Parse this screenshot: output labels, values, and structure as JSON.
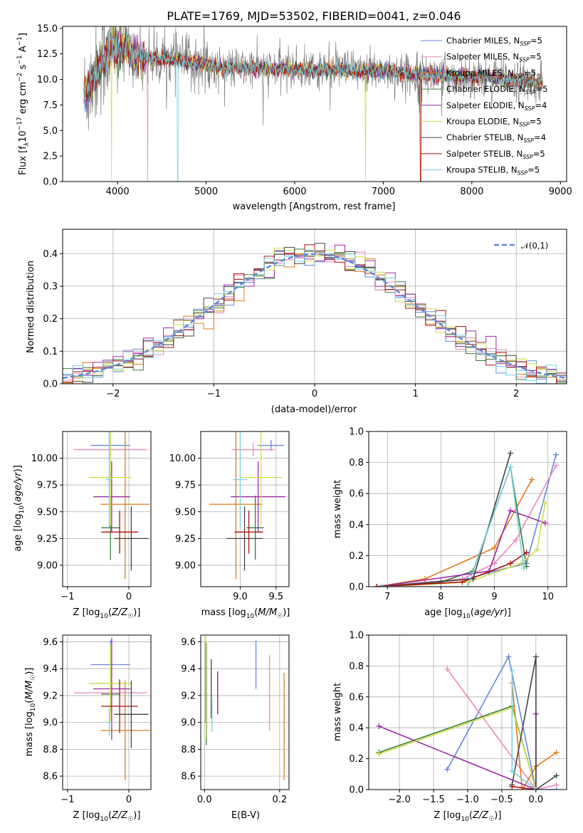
{
  "colors": [
    "#6688dd",
    "#e888bb",
    "#e07a1f",
    "#3a7d3a",
    "#9c2aa8",
    "#ccdd44",
    "#444444",
    "#aa1111",
    "#77d0e0"
  ],
  "chart_data": [
    {
      "id": "spectrum",
      "type": "line",
      "title": "PLATE=1769, MJD=53502, FIBERID=0041, z=0.046",
      "xlabel": "wavelength [Angstrom, rest frame]",
      "ylabel": "Flux [f_λ10^-17 erg cm^-2 s^-1 A^-1]",
      "xlim": [
        3380,
        9070
      ],
      "ylim": [
        0,
        15.2
      ],
      "xticks": [
        4000,
        5000,
        6000,
        7000,
        8000,
        9000
      ],
      "yticks": [
        0.0,
        2.5,
        5.0,
        7.5,
        10.0,
        12.5,
        15.0
      ],
      "data_range": [
        3620,
        8800
      ],
      "continuum": {
        "x": [
          3620,
          3700,
          3800,
          3900,
          4000,
          4100,
          4200,
          4300,
          4500,
          4700,
          5000,
          5200,
          5500,
          5800,
          6000,
          6200,
          6500,
          6700,
          7000,
          7300,
          7600,
          8000,
          8400,
          8800
        ],
        "y": [
          8.4,
          9.6,
          11.5,
          12.6,
          13.2,
          13.0,
          12.4,
          12.1,
          12.0,
          11.8,
          11.4,
          11.1,
          11.1,
          11.0,
          11.0,
          10.9,
          11.0,
          10.8,
          10.9,
          10.5,
          10.4,
          10.3,
          10.0,
          9.7
        ]
      },
      "dips": [
        {
          "x": 3933,
          "series": [
            5
          ]
        },
        {
          "x": 4340,
          "series": [
            1
          ]
        },
        {
          "x": 4680,
          "series": [
            8
          ]
        },
        {
          "x": 6800,
          "series": [
            5
          ]
        },
        {
          "x": 7420,
          "series": [
            2,
            7
          ]
        }
      ],
      "legend": {
        "placement": "upper right",
        "labels": [
          "Chabrier MILES",
          "Salpeter MILES",
          "Kroupa MILES",
          "Chabrier ELODIE",
          "Salpeter ELODIE",
          "Kroupa ELODIE",
          "Chabrier STELIB",
          "Salpeter STELIB",
          "Kroupa STELIB"
        ],
        "nssp": [
          "N_SSP=5",
          "N_SSP=5",
          "N_SSP=5",
          "N_SSP=5",
          "N_SSP=4",
          "N_SSP=5",
          "N_SSP=4",
          "N_SSP=5",
          "N_SSP=5"
        ]
      }
    },
    {
      "id": "residuals",
      "type": "line",
      "xlabel": "(data-model)/error",
      "ylabel": "Normed distribution",
      "xlim": [
        -2.5,
        2.5
      ],
      "ylim": [
        0,
        0.475
      ],
      "xticks": [
        -2,
        -1,
        0,
        1,
        2
      ],
      "yticks": [
        0.0,
        0.1,
        0.2,
        0.3,
        0.4
      ],
      "bin_width": 0.1,
      "reference": {
        "label": "𝒩(0,1)",
        "mean": 0,
        "sigma": 1
      },
      "legend_placement": "upper right"
    },
    {
      "id": "age-vs-Z",
      "type": "scatter",
      "xlabel": "Z [log10(Z/Z☉)]",
      "ylabel": "age  [log10(age/yr)]",
      "xlim": [
        -1.08,
        0.36
      ],
      "ylim": [
        8.8,
        10.25
      ],
      "xticks": [
        -1,
        0
      ],
      "yticks": [
        9.0,
        9.25,
        9.5,
        9.75,
        10.0
      ],
      "points": [
        {
          "x": -0.3,
          "xerr": 0.32,
          "y": 10.12,
          "yerr": 0.05
        },
        {
          "x": -0.3,
          "xerr": 0.6,
          "y": 10.08,
          "yerr": 0.06
        },
        {
          "x": -0.06,
          "xerr": 0.4,
          "y": 9.57,
          "yerr": 0.7
        },
        {
          "x": -0.3,
          "xerr": 0.15,
          "y": 9.35,
          "yerr": 0.3
        },
        {
          "x": -0.28,
          "xerr": 0.3,
          "y": 9.64,
          "yerr": 0.33
        },
        {
          "x": -0.3,
          "xerr": 0.35,
          "y": 9.82,
          "yerr": 0.45
        },
        {
          "x": 0.04,
          "xerr": 0.28,
          "y": 9.25,
          "yerr": 0.3
        },
        {
          "x": -0.15,
          "xerr": 0.3,
          "y": 9.31,
          "yerr": 0.2
        },
        {
          "x": -0.32,
          "xerr": 0.05,
          "y": 9.8,
          "yerr": 0.45
        }
      ]
    },
    {
      "id": "age-vs-mass",
      "type": "scatter",
      "xlabel": "mass [log10(M/M☉)]",
      "ylabel": "",
      "xlim": [
        8.45,
        9.68
      ],
      "ylim": [
        8.8,
        10.25
      ],
      "xticks": [
        9.0,
        9.5
      ],
      "yticks": [
        9.0,
        9.25,
        9.5,
        9.75,
        10.0
      ],
      "points": [
        {
          "x": 9.43,
          "xerr": 0.18,
          "y": 10.12,
          "yerr": 0.05
        },
        {
          "x": 9.18,
          "xerr": 0.3,
          "y": 10.08,
          "yerr": 0.06
        },
        {
          "x": 8.94,
          "xerr": 0.37,
          "y": 9.57,
          "yerr": 0.7
        },
        {
          "x": 9.21,
          "xerr": 0.12,
          "y": 9.35,
          "yerr": 0.3
        },
        {
          "x": 9.25,
          "xerr": 0.38,
          "y": 9.64,
          "yerr": 0.33
        },
        {
          "x": 9.29,
          "xerr": 0.29,
          "y": 9.82,
          "yerr": 0.45
        },
        {
          "x": 9.06,
          "xerr": 0.25,
          "y": 9.25,
          "yerr": 0.3
        },
        {
          "x": 9.12,
          "xerr": 0.2,
          "y": 9.31,
          "yerr": 0.2
        },
        {
          "x": 9.0,
          "xerr": 0.1,
          "y": 9.8,
          "yerr": 0.45
        }
      ]
    },
    {
      "id": "weight-vs-age",
      "type": "line",
      "xlabel": "age  [log10(age/yr)]",
      "ylabel": "mass weight",
      "xlim": [
        6.65,
        10.35
      ],
      "ylim": [
        0,
        1.0
      ],
      "xticks": [
        7,
        8,
        9,
        10
      ],
      "yticks": [
        0.0,
        0.2,
        0.4,
        0.6,
        0.8,
        1.0
      ],
      "series": [
        {
          "x": [
            6.8,
            8.5,
            9.0,
            9.6,
            10.15
          ],
          "y": [
            0.0,
            0.05,
            0.1,
            0.15,
            0.85
          ]
        },
        {
          "x": [
            6.8,
            8.4,
            9.0,
            9.4,
            10.15
          ],
          "y": [
            0.0,
            0.05,
            0.15,
            0.3,
            0.78
          ]
        },
        {
          "x": [
            6.8,
            7.7,
            9.0,
            9.7
          ],
          "y": [
            0.0,
            0.05,
            0.25,
            0.69
          ]
        },
        {
          "x": [
            6.9,
            8.0,
            8.6,
            9.3,
            9.6
          ],
          "y": [
            0.0,
            0.03,
            0.1,
            0.77,
            0.13
          ]
        },
        {
          "x": [
            6.8,
            8.9,
            9.3,
            9.95
          ],
          "y": [
            0.0,
            0.1,
            0.49,
            0.41
          ]
        },
        {
          "x": [
            7.0,
            8.5,
            9.5,
            9.8,
            9.95
          ],
          "y": [
            0.0,
            0.03,
            0.15,
            0.24,
            0.54
          ]
        },
        {
          "x": [
            6.8,
            8.6,
            9.3
          ],
          "y": [
            0.0,
            0.05,
            0.86
          ]
        },
        {
          "x": [
            6.8,
            8.4,
            9.3,
            9.6
          ],
          "y": [
            0.0,
            0.03,
            0.15,
            0.22
          ]
        },
        {
          "x": [
            6.9,
            8.5,
            9.3,
            9.55
          ],
          "y": [
            0.0,
            0.0,
            0.77,
            0.12
          ]
        }
      ]
    },
    {
      "id": "mass-vs-Z",
      "type": "scatter",
      "xlabel": "Z [log10(Z/Z☉)]",
      "ylabel": "mass [log10(M/M☉)]",
      "xlim": [
        -1.08,
        0.36
      ],
      "ylim": [
        8.5,
        9.65
      ],
      "xticks": [
        -1,
        0
      ],
      "yticks": [
        8.6,
        8.8,
        9.0,
        9.2,
        9.4,
        9.6
      ],
      "points": [
        {
          "x": -0.3,
          "xerr": 0.32,
          "y": 9.43,
          "yerr": 0.18
        },
        {
          "x": -0.3,
          "xerr": 0.6,
          "y": 9.22,
          "yerr": 0.18
        },
        {
          "x": -0.06,
          "xerr": 0.4,
          "y": 8.94,
          "yerr": 0.37
        },
        {
          "x": -0.3,
          "xerr": 0.15,
          "y": 9.21,
          "yerr": 0.12
        },
        {
          "x": -0.28,
          "xerr": 0.3,
          "y": 9.25,
          "yerr": 0.38
        },
        {
          "x": -0.3,
          "xerr": 0.35,
          "y": 9.29,
          "yerr": 0.29
        },
        {
          "x": 0.04,
          "xerr": 0.28,
          "y": 9.06,
          "yerr": 0.25
        },
        {
          "x": -0.15,
          "xerr": 0.3,
          "y": 9.12,
          "yerr": 0.2
        },
        {
          "x": -0.32,
          "xerr": 0.05,
          "y": 9.0,
          "yerr": 0.1
        }
      ]
    },
    {
      "id": "mass-vs-ebv",
      "type": "scatter",
      "xlabel": "E(B-V)",
      "ylabel": "",
      "xlim": [
        -0.01,
        0.225
      ],
      "ylim": [
        8.5,
        9.65
      ],
      "xticks": [
        0.0,
        0.2
      ],
      "yticks": [
        8.6,
        8.8,
        9.0,
        9.2,
        9.4,
        9.6
      ],
      "points": [
        {
          "x": 0.137,
          "y": 9.43,
          "yerr": 0.18
        },
        {
          "x": 0.173,
          "y": 9.22,
          "yerr": 0.28
        },
        {
          "x": 0.212,
          "y": 8.97,
          "yerr": 0.4
        },
        {
          "x": 0.005,
          "y": 9.21,
          "yerr": 0.38
        },
        {
          "x": 0.003,
          "y": 9.3,
          "yerr": 0.3
        },
        {
          "x": 0.004,
          "y": 9.28,
          "yerr": 0.4
        },
        {
          "x": 0.018,
          "y": 9.25,
          "yerr": 0.22
        },
        {
          "x": 0.035,
          "y": 9.22,
          "yerr": 0.16
        },
        {
          "x": 0.02,
          "y": 9.05,
          "yerr": 0.12
        }
      ]
    },
    {
      "id": "weight-vs-Z",
      "type": "line",
      "xlabel": "Z [log10(Z/Z☉)]",
      "ylabel": "mass weight",
      "xlim": [
        -2.45,
        0.45
      ],
      "ylim": [
        0,
        1.0
      ],
      "xticks": [
        -2.0,
        -1.5,
        -1.0,
        -0.5,
        0.0
      ],
      "yticks": [
        0.0,
        0.2,
        0.4,
        0.6,
        0.8,
        1.0
      ],
      "series": [
        {
          "x": [
            -1.3,
            -0.4,
            0.0,
            0.3
          ],
          "y": [
            0.13,
            0.86,
            0.0,
            0.0
          ]
        },
        {
          "x": [
            -1.3,
            0.0,
            0.3
          ],
          "y": [
            0.78,
            0.0,
            0.03
          ]
        },
        {
          "x": [
            -0.35,
            -0.2,
            0.0,
            0.3
          ],
          "y": [
            0.69,
            0.0,
            0.15,
            0.24
          ]
        },
        {
          "x": [
            -2.3,
            -0.35,
            0.0
          ],
          "y": [
            0.24,
            0.54,
            0.0
          ]
        },
        {
          "x": [
            -2.3,
            0.0,
            0.0
          ],
          "y": [
            0.41,
            0.0,
            0.49
          ]
        },
        {
          "x": [
            -2.3,
            -0.35,
            0.0
          ],
          "y": [
            0.23,
            0.53,
            0.0
          ]
        },
        {
          "x": [
            -0.35,
            0.0,
            0.0,
            0.3
          ],
          "y": [
            0.03,
            0.86,
            0.0,
            0.09
          ]
        },
        {
          "x": [
            -0.35,
            0.0
          ],
          "y": [
            0.02,
            0.0
          ]
        },
        {
          "x": [
            -0.35,
            -0.35,
            0.0
          ],
          "y": [
            0.77,
            0.12,
            0.0
          ]
        }
      ]
    }
  ]
}
